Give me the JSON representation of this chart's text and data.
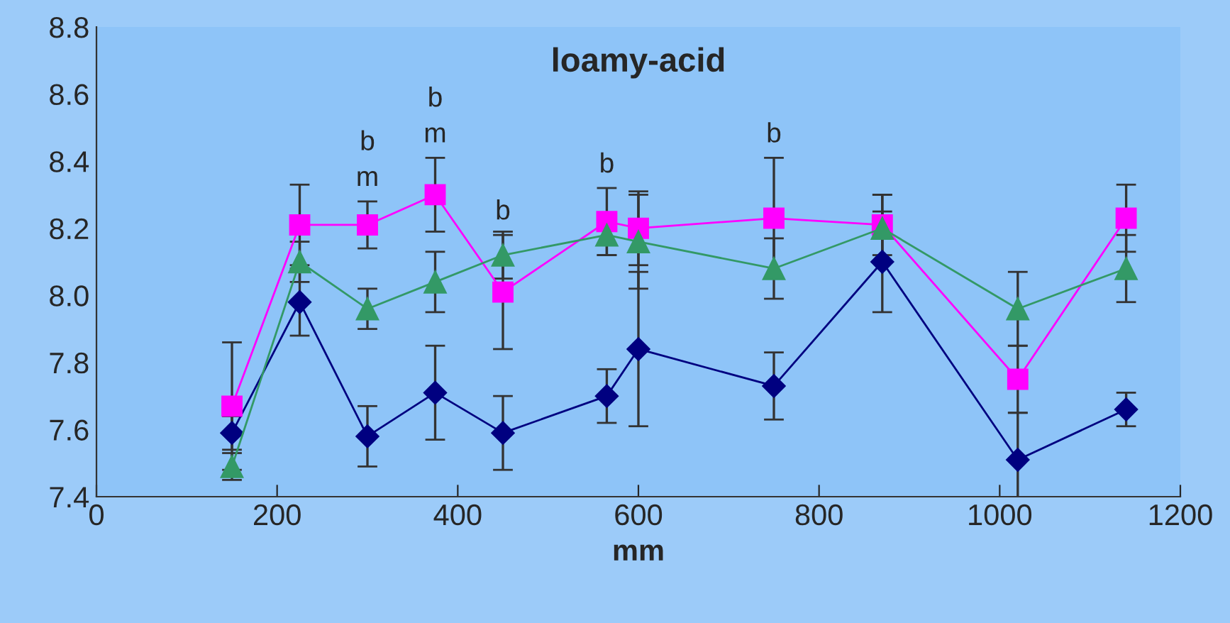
{
  "chart_data": {
    "type": "line",
    "title": "loamy-acid",
    "xlabel": "mm",
    "x": [
      150,
      225,
      300,
      375,
      450,
      565,
      600,
      750,
      870,
      1020,
      1140
    ],
    "series": [
      {
        "color": "#000080",
        "marker": "diamond",
        "values": [
          7.59,
          7.98,
          7.58,
          7.71,
          7.59,
          7.7,
          7.84,
          7.73,
          8.1,
          7.51,
          7.66
        ],
        "errors": [
          0.05,
          0.1,
          0.09,
          0.14,
          0.11,
          0.08,
          0.23,
          0.1,
          0.15,
          0.14,
          0.05
        ]
      },
      {
        "color": "#ff00ff",
        "marker": "square",
        "values": [
          7.67,
          8.21,
          8.21,
          8.3,
          8.01,
          8.22,
          8.2,
          8.23,
          8.21,
          7.75,
          8.23
        ],
        "errors": [
          0.19,
          0.12,
          0.07,
          0.11,
          0.17,
          0.1,
          0.11,
          0.18,
          0.09,
          0.1,
          0.1
        ]
      },
      {
        "color": "#339966",
        "marker": "triangle",
        "values": [
          7.49,
          8.1,
          7.96,
          8.04,
          8.12,
          8.18,
          8.16,
          8.08,
          8.2,
          7.96,
          8.08
        ],
        "errors": [
          0.04,
          0.06,
          0.06,
          0.09,
          0.07,
          0.06,
          0.14,
          0.09,
          0.1,
          0.11,
          0.1
        ]
      }
    ],
    "xlim": [
      0,
      1200
    ],
    "xticks": [
      0,
      200,
      400,
      600,
      800,
      1000,
      1200
    ],
    "ylim": [
      7.4,
      8.8
    ],
    "yticks": [
      {
        "value": 7.4,
        "label": "7.4"
      },
      {
        "value": 7.6,
        "label": "7.6"
      },
      {
        "value": 7.8,
        "label": "7.8"
      },
      {
        "value": 8.0,
        "label": "8.0"
      },
      {
        "value": 8.2,
        "label": "8.2"
      },
      {
        "value": 8.4,
        "label": "8.4"
      },
      {
        "value": 8.6,
        "label": "8.6"
      },
      {
        "value": 8.8,
        "label": "8.8"
      }
    ],
    "annotations": [
      {
        "text": "b\nm",
        "x": 300,
        "y": 8.21
      },
      {
        "text": "b\nm",
        "x": 375,
        "y": 8.3
      },
      {
        "text": "b",
        "x": 450,
        "y": 8.01
      },
      {
        "text": "b",
        "x": 565,
        "y": 8.22
      },
      {
        "text": "b",
        "x": 750,
        "y": 8.23
      }
    ],
    "grid": false,
    "legend": false
  }
}
